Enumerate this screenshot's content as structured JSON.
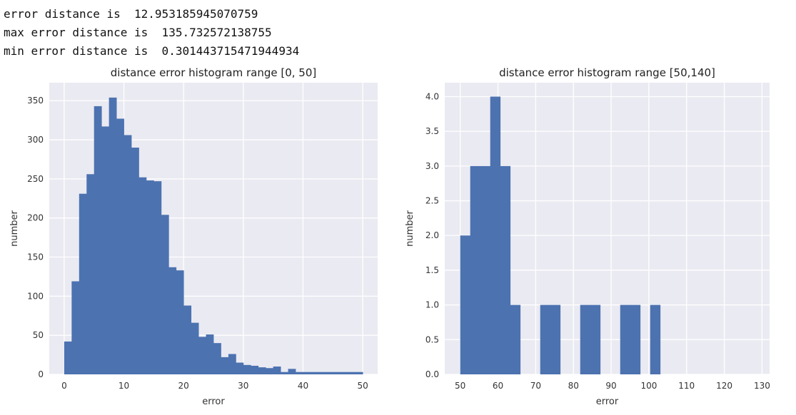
{
  "console": {
    "lines": [
      "error distance is  12.953185945070759",
      "max error distance is  135.732572138755",
      "min error distance is  0.301443715471944934"
    ]
  },
  "colors": {
    "bar": "#4C72B0",
    "plot_background": "#EAEAF2",
    "grid": "#FFFFFF"
  },
  "chart_data": [
    {
      "type": "bar",
      "title": "distance error histogram range [0, 50]",
      "xlabel": "error",
      "ylabel": "number",
      "xlim": [
        -2.5,
        52.5
      ],
      "ylim": [
        0,
        373
      ],
      "xticks": [
        0,
        10,
        20,
        30,
        40,
        50
      ],
      "yticks": [
        0,
        50,
        100,
        150,
        200,
        250,
        300,
        350
      ],
      "grid": true,
      "bin_edges": [
        0,
        1.25,
        2.5,
        3.75,
        5,
        6.25,
        7.5,
        8.75,
        10,
        11.25,
        12.5,
        13.75,
        15,
        16.25,
        17.5,
        18.75,
        20,
        21.25,
        22.5,
        23.75,
        25,
        26.25,
        27.5,
        28.75,
        30,
        31.25,
        32.5,
        33.75,
        35,
        36.25,
        37.5,
        38.75,
        40,
        41.25,
        42.5,
        43.75,
        45,
        46.25,
        47.5,
        48.75,
        50
      ],
      "values": [
        42,
        119,
        231,
        256,
        343,
        317,
        354,
        327,
        306,
        290,
        252,
        248,
        247,
        204,
        137,
        133,
        88,
        66,
        48,
        51,
        40,
        22,
        26,
        15,
        12,
        11,
        9,
        8,
        10,
        3,
        7,
        3,
        3,
        3,
        3,
        3,
        3,
        3,
        3,
        3
      ]
    },
    {
      "type": "bar",
      "title": "distance error histogram range [50,140]",
      "xlabel": "error",
      "ylabel": "number",
      "xlim": [
        45.9,
        132.0
      ],
      "ylim": [
        0,
        4.2
      ],
      "xticks": [
        50,
        60,
        70,
        80,
        90,
        100,
        110,
        120,
        130
      ],
      "yticks": [
        0.0,
        0.5,
        1.0,
        1.5,
        2.0,
        2.5,
        3.0,
        3.5,
        4.0
      ],
      "grid": true,
      "bin_edges": [
        50,
        52.65,
        55.3,
        57.95,
        60.6,
        63.25,
        65.9,
        68.55,
        71.2,
        73.85,
        76.5,
        79.15,
        81.8,
        84.45,
        87.1,
        89.75,
        92.4,
        95.05,
        97.7,
        100.35,
        103.0
      ],
      "values": [
        2,
        3,
        3,
        4,
        3,
        1,
        0,
        0,
        1,
        1,
        0,
        0,
        1,
        1,
        0,
        0,
        1,
        1,
        0,
        1
      ]
    }
  ]
}
